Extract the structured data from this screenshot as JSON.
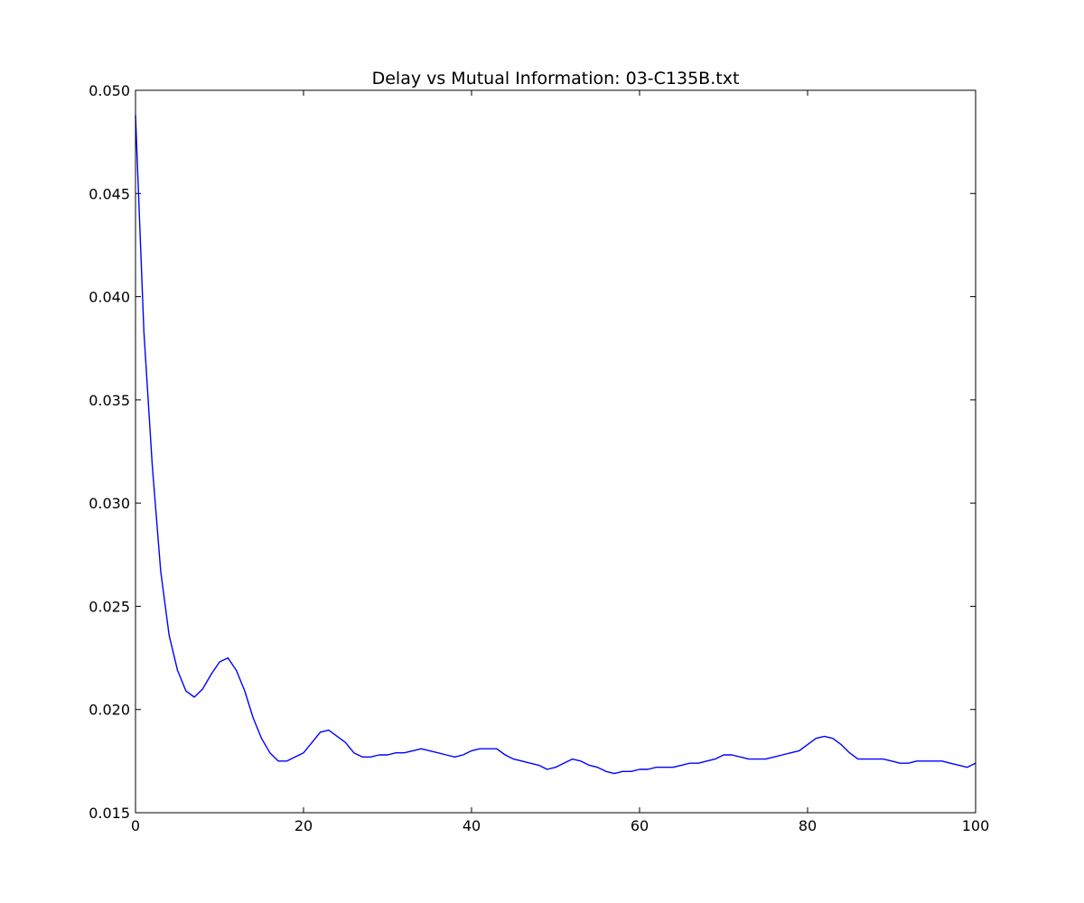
{
  "chart_data": {
    "type": "line",
    "title": "Delay vs Mutual Information: 03-C135B.txt",
    "xlabel": "",
    "ylabel": "",
    "xlim": [
      0,
      100
    ],
    "ylim": [
      0.015,
      0.05
    ],
    "x_ticks": [
      0,
      20,
      40,
      60,
      80,
      100
    ],
    "x_tick_labels": [
      "0",
      "20",
      "40",
      "60",
      "80",
      "100"
    ],
    "y_ticks": [
      0.015,
      0.02,
      0.025,
      0.03,
      0.035,
      0.04,
      0.045,
      0.05
    ],
    "y_tick_labels": [
      "0.015",
      "0.020",
      "0.025",
      "0.030",
      "0.035",
      "0.040",
      "0.045",
      "0.050"
    ],
    "grid": false,
    "line_color": "#0000ff",
    "series": [
      {
        "x": [
          0,
          1,
          2,
          3,
          4,
          5,
          6,
          7,
          8,
          9,
          10,
          11,
          12,
          13,
          14,
          15,
          16,
          17,
          18,
          19,
          20,
          21,
          22,
          23,
          24,
          25,
          26,
          27,
          28,
          29,
          30,
          31,
          32,
          33,
          34,
          35,
          36,
          37,
          38,
          39,
          40,
          41,
          42,
          43,
          44,
          45,
          46,
          47,
          48,
          49,
          50,
          51,
          52,
          53,
          54,
          55,
          56,
          57,
          58,
          59,
          60,
          61,
          62,
          63,
          64,
          65,
          66,
          67,
          68,
          69,
          70,
          71,
          72,
          73,
          74,
          75,
          76,
          77,
          78,
          79,
          80,
          81,
          82,
          83,
          84,
          85,
          86,
          87,
          88,
          89,
          90,
          91,
          92,
          93,
          94,
          95,
          96,
          97,
          98,
          99,
          100
        ],
        "values": [
          0.0488,
          0.0383,
          0.0318,
          0.0267,
          0.0236,
          0.0219,
          0.0209,
          0.0206,
          0.021,
          0.0217,
          0.0223,
          0.0225,
          0.0219,
          0.0209,
          0.0196,
          0.0186,
          0.0179,
          0.0175,
          0.0175,
          0.0177,
          0.0179,
          0.0184,
          0.0189,
          0.019,
          0.0187,
          0.0184,
          0.0179,
          0.0177,
          0.0177,
          0.0178,
          0.0178,
          0.0179,
          0.0179,
          0.018,
          0.0181,
          0.018,
          0.0179,
          0.0178,
          0.0177,
          0.0178,
          0.018,
          0.0181,
          0.0181,
          0.0181,
          0.0178,
          0.0176,
          0.0175,
          0.0174,
          0.0173,
          0.0171,
          0.0172,
          0.0174,
          0.0176,
          0.0175,
          0.0173,
          0.0172,
          0.017,
          0.0169,
          0.017,
          0.017,
          0.0171,
          0.0171,
          0.0172,
          0.0172,
          0.0172,
          0.0173,
          0.0174,
          0.0174,
          0.0175,
          0.0176,
          0.0178,
          0.0178,
          0.0177,
          0.0176,
          0.0176,
          0.0176,
          0.0177,
          0.0178,
          0.0179,
          0.018,
          0.0183,
          0.0186,
          0.0187,
          0.0186,
          0.0183,
          0.0179,
          0.0176,
          0.0176,
          0.0176,
          0.0176,
          0.0175,
          0.0174,
          0.0174,
          0.0175,
          0.0175,
          0.0175,
          0.0175,
          0.0174,
          0.0173,
          0.0172,
          0.0174
        ]
      }
    ]
  }
}
